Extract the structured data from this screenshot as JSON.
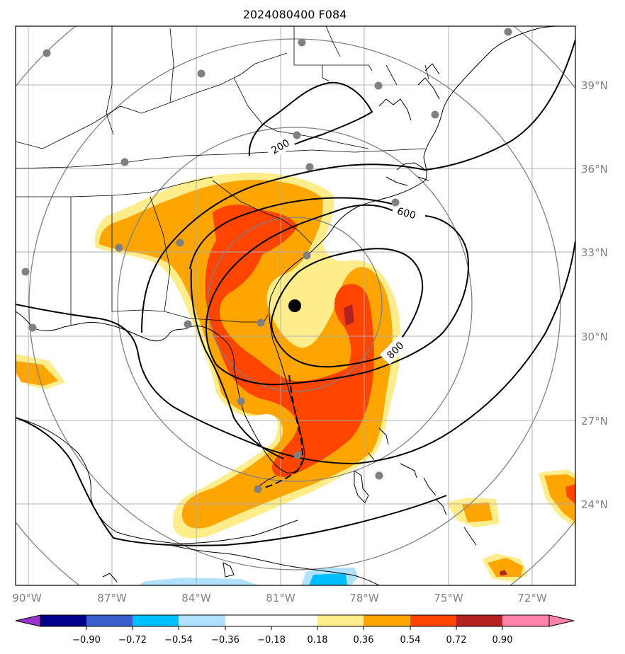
{
  "title": "2024080400 F084",
  "longitude_labels": [
    "90°W",
    "87°W",
    "84°W",
    "81°W",
    "78°W",
    "75°W",
    "72°W"
  ],
  "latitude_labels": [
    "39°N",
    "36°N",
    "33°N",
    "30°N",
    "27°N",
    "24°N"
  ],
  "contour_labels": [
    "200",
    "600",
    "800"
  ],
  "colorbar": {
    "tick_labels": [
      "−0.90",
      "−0.72",
      "−0.54",
      "−0.36",
      "−0.18",
      "0.18",
      "0.36",
      "0.54",
      "0.72",
      "0.90"
    ],
    "colors": [
      "#9a32cd",
      "#00008b",
      "#3a5fcd",
      "#00bfff",
      "#b0e2ff",
      "#ffffff",
      "#ffec8b",
      "#ffa500",
      "#ff4500",
      "#b22222",
      "#ff82ab"
    ]
  },
  "center_marker_color": "#000000",
  "station_marker_color": "#808080"
}
